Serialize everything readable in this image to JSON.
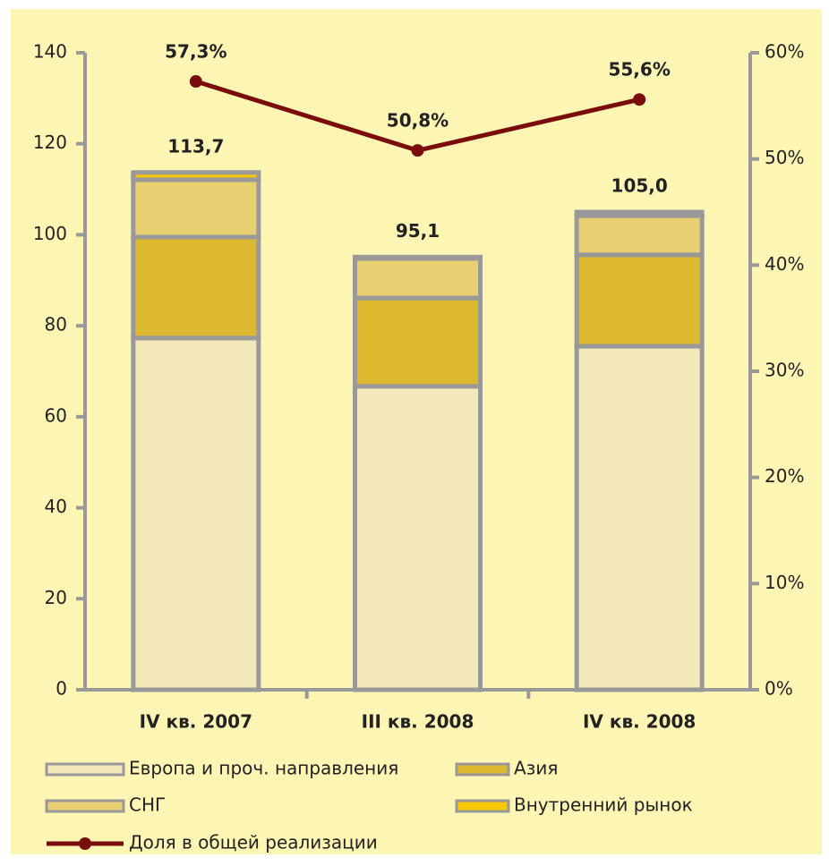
{
  "chart_data": {
    "type": "bar",
    "stacked": true,
    "categories": [
      "IV кв. 2007",
      "III кв. 2008",
      "IV кв. 2008"
    ],
    "series": [
      {
        "name": "Европа и проч. направления",
        "color": "#f3e8b8",
        "values": [
          77.3,
          66.7,
          75.5
        ]
      },
      {
        "name": "Азия",
        "color": "#dcb82e",
        "values": [
          22.2,
          19.4,
          20.1
        ]
      },
      {
        "name": "СНГ",
        "color": "#e8cf72",
        "values": [
          12.6,
          8.7,
          8.6
        ]
      },
      {
        "name": "Внутренний рынок",
        "color": "#f7c800",
        "values": [
          1.6,
          0.3,
          0.8
        ]
      },
      {
        "name": "Доля в общей реализации",
        "type": "line",
        "axis": "y2",
        "color": "#7a0c0c",
        "values": [
          57.3,
          50.8,
          55.6
        ],
        "value_labels": [
          "57,3%",
          "50,8%",
          "55,6%"
        ]
      }
    ],
    "totals": [
      113.7,
      95.1,
      105.0
    ],
    "total_labels": [
      "113,7",
      "95,1",
      "105,0"
    ],
    "ylim": [
      0,
      140
    ],
    "yticks": [
      0,
      20,
      40,
      60,
      80,
      100,
      120,
      140
    ],
    "y2lim": [
      0,
      60
    ],
    "y2ticks": [
      {
        "value": 0,
        "label": "0%"
      },
      {
        "value": 10,
        "label": "10%"
      },
      {
        "value": 20,
        "label": "20%"
      },
      {
        "value": 30,
        "label": "30%"
      },
      {
        "value": 40,
        "label": "40%"
      },
      {
        "value": 50,
        "label": "50%"
      },
      {
        "value": 60,
        "label": "60%"
      }
    ],
    "background": "#fdf5b4"
  }
}
